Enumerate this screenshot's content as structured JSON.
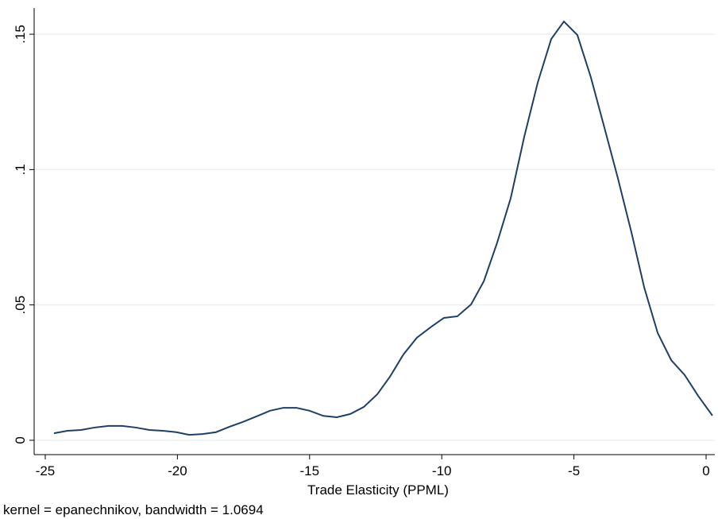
{
  "chart_data": {
    "type": "line",
    "xlabel": "Trade Elasticity (PPML)",
    "note": "kernel = epanechnikov, bandwidth = 1.0694",
    "color": "#1f3f66",
    "x": [
      -24.67,
      -24.16,
      -23.65,
      -23.14,
      -22.6,
      -22.09,
      -21.57,
      -21.06,
      -20.55,
      -20.04,
      -19.56,
      -19.05,
      -18.54,
      -18.03,
      -17.52,
      -17.01,
      -16.5,
      -15.99,
      -15.5,
      -15.0,
      -14.48,
      -13.97,
      -13.46,
      -12.95,
      -12.44,
      -11.96,
      -11.45,
      -10.94,
      -10.43,
      -9.92,
      -9.41,
      -8.89,
      -8.41,
      -7.9,
      -7.39,
      -6.88,
      -6.37,
      -5.86,
      -5.38,
      -4.87,
      -4.36,
      -3.85,
      -3.34,
      -2.82,
      -2.34,
      -1.83,
      -1.32,
      -0.81,
      -0.3,
      0.24
    ],
    "values": [
      0.0026,
      0.0035,
      0.0038,
      0.0047,
      0.0053,
      0.0053,
      0.0047,
      0.0038,
      0.0035,
      0.003,
      0.002,
      0.0023,
      0.003,
      0.005,
      0.0068,
      0.0088,
      0.0109,
      0.012,
      0.012,
      0.0109,
      0.009,
      0.0085,
      0.0097,
      0.0123,
      0.017,
      0.0235,
      0.0317,
      0.0379,
      0.0417,
      0.0452,
      0.0458,
      0.0502,
      0.0587,
      0.0731,
      0.0895,
      0.1121,
      0.1321,
      0.1482,
      0.1547,
      0.1497,
      0.1341,
      0.1156,
      0.0969,
      0.0766,
      0.0564,
      0.0396,
      0.0296,
      0.0241,
      0.0164,
      0.0091
    ],
    "xlim": [
      -25.42,
      0.33
    ],
    "xticks": [
      -25,
      -20,
      -15,
      -10,
      -5,
      0
    ],
    "ylim": [
      -0.0053,
      0.1597
    ],
    "yticks": [
      0,
      {
        "value": 0.05,
        "label": ".05"
      },
      {
        "value": 0.1,
        "label": ".1"
      },
      {
        "value": 0.15,
        "label": ".15"
      }
    ],
    "grid": true
  }
}
